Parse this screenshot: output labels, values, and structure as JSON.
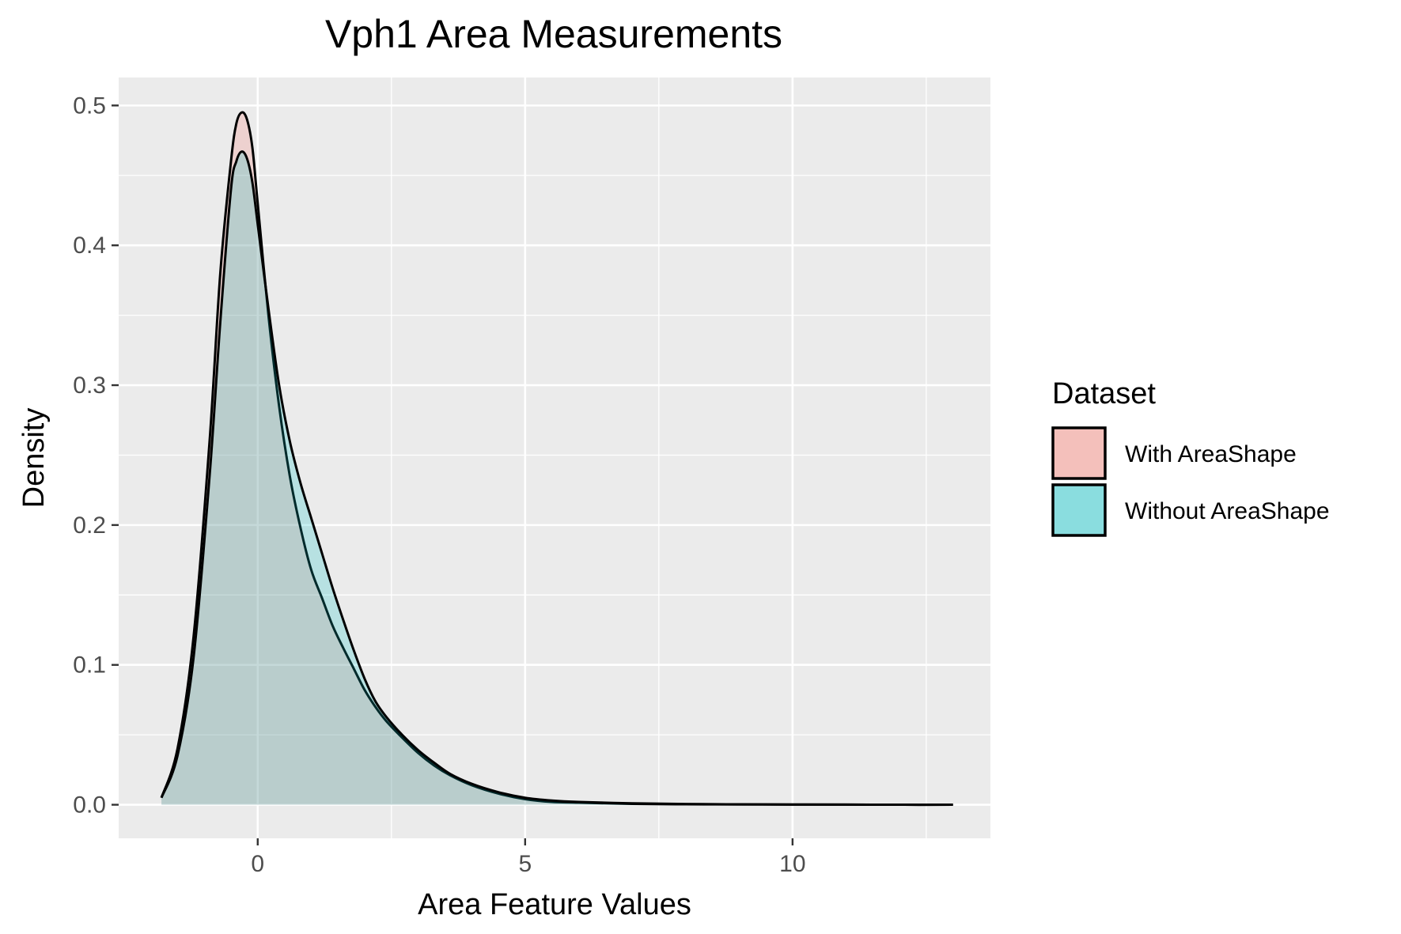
{
  "chart_data": {
    "type": "area",
    "title": "Vph1 Area Measurements",
    "xlabel": "Area Feature Values",
    "ylabel": "Density",
    "xlim": [
      -2.6,
      13.7
    ],
    "ylim": [
      -0.024,
      0.52
    ],
    "x_ticks": [
      0,
      5,
      10
    ],
    "x_tick_labels": [
      "0",
      "5",
      "10"
    ],
    "y_ticks": [
      0.0,
      0.1,
      0.2,
      0.3,
      0.4,
      0.5
    ],
    "y_tick_labels": [
      "0.0",
      "0.1",
      "0.2",
      "0.3",
      "0.4",
      "0.5"
    ],
    "grid": true,
    "legend": {
      "title": "Dataset",
      "placement": "right"
    },
    "series": [
      {
        "name": "With AreaShape",
        "color": "#F8766D",
        "fill_color": "#F4C0BB",
        "x": [
          -1.8,
          -1.5,
          -1.2,
          -0.9,
          -0.7,
          -0.5,
          -0.4,
          -0.3,
          -0.2,
          -0.1,
          0.0,
          0.2,
          0.4,
          0.6,
          0.8,
          1.0,
          1.2,
          1.4,
          1.6,
          1.8,
          2.0,
          2.2,
          2.4,
          2.7,
          3.0,
          3.3,
          3.6,
          4.0,
          4.5,
          5.0,
          5.5,
          6.0,
          7.0,
          8.0,
          9.0,
          10.0,
          11.0,
          12.0,
          13.0
        ],
        "y": [
          0.005,
          0.04,
          0.12,
          0.26,
          0.38,
          0.46,
          0.487,
          0.495,
          0.49,
          0.47,
          0.43,
          0.35,
          0.285,
          0.235,
          0.198,
          0.168,
          0.148,
          0.128,
          0.112,
          0.097,
          0.082,
          0.07,
          0.06,
          0.048,
          0.037,
          0.028,
          0.021,
          0.014,
          0.008,
          0.004,
          0.002,
          0.0015,
          0.0006,
          0.0003,
          0.0002,
          0.0001,
          0.0001,
          0.0,
          0.0
        ]
      },
      {
        "name": "Without AreaShape",
        "color": "#00BFC4",
        "fill_color": "#8ADDDF",
        "x": [
          -1.8,
          -1.5,
          -1.2,
          -0.9,
          -0.7,
          -0.5,
          -0.4,
          -0.3,
          -0.2,
          -0.1,
          0.0,
          0.2,
          0.4,
          0.6,
          0.8,
          1.0,
          1.2,
          1.4,
          1.6,
          1.8,
          2.0,
          2.2,
          2.4,
          2.7,
          3.0,
          3.3,
          3.6,
          4.0,
          4.5,
          5.0,
          5.5,
          6.0,
          7.0,
          8.0,
          9.0,
          10.0,
          11.0,
          12.0,
          13.0
        ],
        "y": [
          0.005,
          0.035,
          0.105,
          0.235,
          0.345,
          0.44,
          0.46,
          0.467,
          0.462,
          0.445,
          0.415,
          0.355,
          0.3,
          0.26,
          0.23,
          0.205,
          0.18,
          0.155,
          0.132,
          0.11,
          0.09,
          0.074,
          0.063,
          0.05,
          0.039,
          0.03,
          0.022,
          0.015,
          0.009,
          0.005,
          0.003,
          0.002,
          0.001,
          0.0005,
          0.0003,
          0.0002,
          0.0001,
          0.0,
          0.0
        ]
      }
    ]
  }
}
